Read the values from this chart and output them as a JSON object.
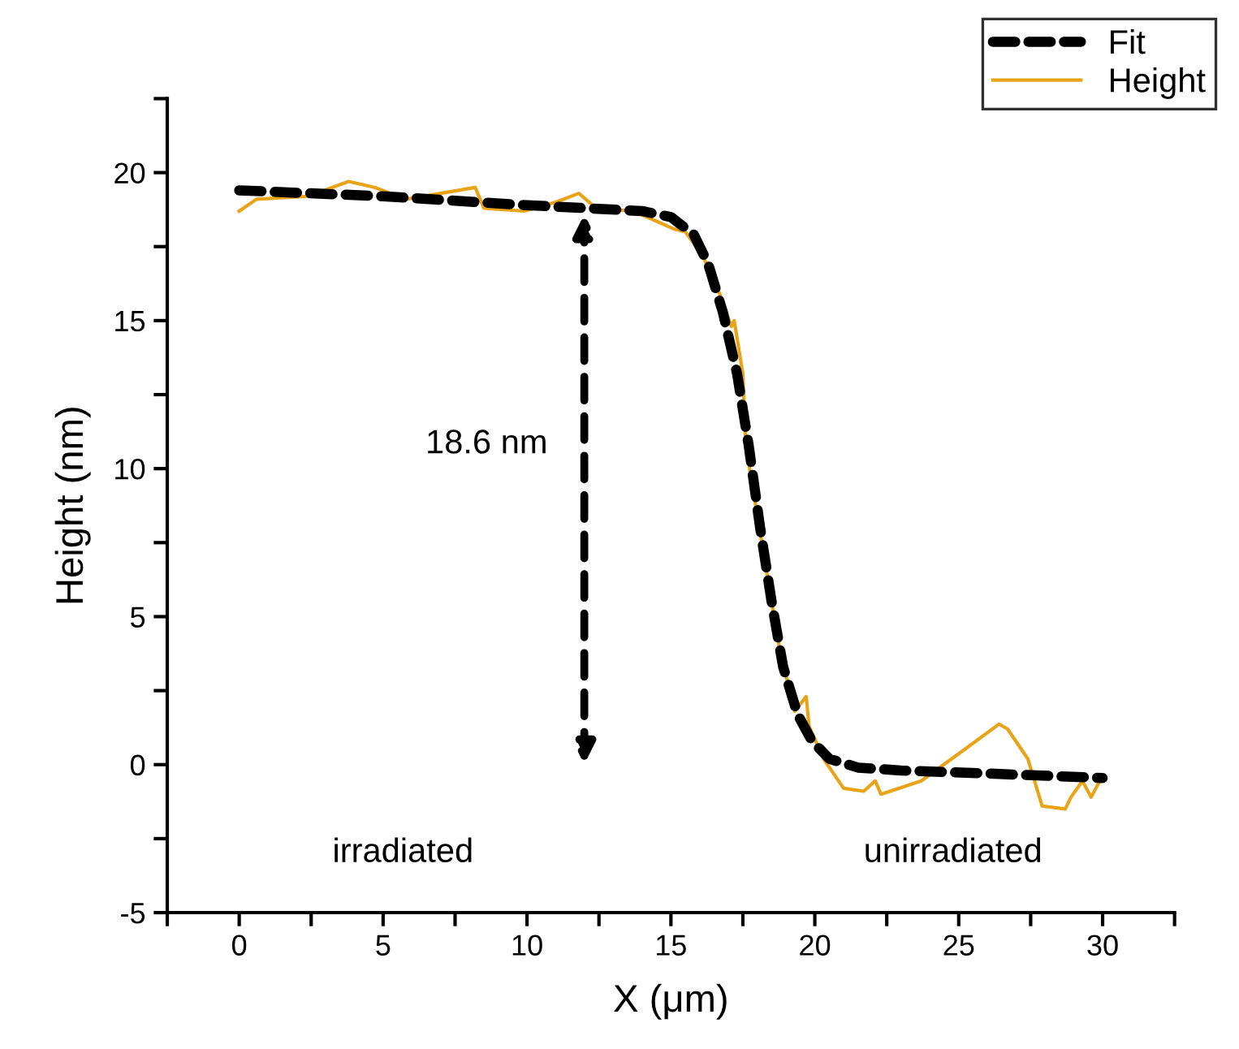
{
  "chart_data": {
    "type": "line",
    "xlabel": "X (μm)",
    "ylabel": "Height (nm)",
    "xlim": [
      -2.5,
      32.5
    ],
    "ylim": [
      -5,
      22.5
    ],
    "xticks": [
      {
        "value": -2.5,
        "label": null
      },
      0,
      {
        "value": 2.5,
        "label": null
      },
      5,
      {
        "value": 7.5,
        "label": null
      },
      10,
      {
        "value": 12.5,
        "label": null
      },
      15,
      {
        "value": 17.5,
        "label": null
      },
      20,
      {
        "value": 22.5,
        "label": null
      },
      25,
      {
        "value": 27.5,
        "label": null
      },
      30,
      {
        "value": 32.5,
        "label": null
      }
    ],
    "yticks": [
      -5,
      {
        "value": -2.5,
        "label": null
      },
      0,
      {
        "value": 2.5,
        "label": null
      },
      5,
      {
        "value": 7.5,
        "label": null
      },
      10,
      {
        "value": 12.5,
        "label": null
      },
      15,
      {
        "value": 17.5,
        "label": null
      },
      20,
      {
        "value": 22.5,
        "label": null
      }
    ],
    "grid": false,
    "legend": "top right",
    "series": [
      {
        "name": "Fit",
        "color": "#000000",
        "line_style": "dashed",
        "x": [
          0,
          5,
          10,
          12,
          14,
          15,
          15.8,
          16.3,
          16.8,
          17.3,
          17.7,
          18.1,
          18.5,
          18.9,
          19.4,
          19.9,
          20.5,
          21.5,
          23,
          26,
          30
        ],
        "values": [
          19.4,
          19.2,
          18.9,
          18.8,
          18.7,
          18.5,
          17.9,
          16.9,
          15.3,
          13.2,
          10.8,
          8.0,
          5.5,
          3.3,
          1.7,
          0.8,
          0.2,
          -0.1,
          -0.2,
          -0.3,
          -0.45
        ]
      },
      {
        "name": "Height",
        "color": "#e8a317",
        "line_style": "solid",
        "x": [
          0,
          0.6,
          2.4,
          3.8,
          4.7,
          5.8,
          7.0,
          8.2,
          8.5,
          9.9,
          11.0,
          11.8,
          12.4,
          13.7,
          15.1,
          15.5,
          16.1,
          16.7,
          17.1,
          17.2,
          17.5,
          17.6,
          18.6,
          18.8,
          19.3,
          19.7,
          19.8,
          20.3,
          21.0,
          21.7,
          22.1,
          22.3,
          23.7,
          25.1,
          26.4,
          26.7,
          27.4,
          27.9,
          28.7,
          28.9,
          29.3,
          29.6,
          29.9
        ],
        "values": [
          18.7,
          19.1,
          19.2,
          19.7,
          19.5,
          19.1,
          19.3,
          19.5,
          18.8,
          18.7,
          19.0,
          19.3,
          18.8,
          18.7,
          18.1,
          18.0,
          17.2,
          15.9,
          14.8,
          15.0,
          13.2,
          10.8,
          4.9,
          3.8,
          1.8,
          2.3,
          1.3,
          0.2,
          -0.8,
          -0.9,
          -0.55,
          -1.0,
          -0.55,
          0.44,
          1.37,
          1.2,
          0.2,
          -1.4,
          -1.5,
          -1.1,
          -0.55,
          -1.1,
          -0.55
        ]
      }
    ],
    "annotations": [
      "18.6 nm",
      "irradiated",
      "unirradiated"
    ]
  }
}
